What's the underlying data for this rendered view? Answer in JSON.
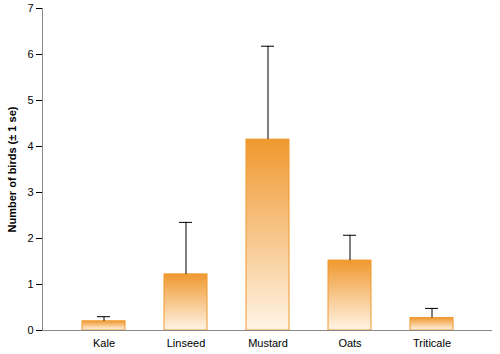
{
  "chart_data": {
    "type": "bar",
    "y_label": "Number of birds (± 1 se)",
    "categories": [
      "Kale",
      "Linseed",
      "Mustard",
      "Oats",
      "Triticale"
    ],
    "values": [
      0.2,
      1.22,
      4.15,
      1.52,
      0.27
    ],
    "error": [
      0.1,
      1.13,
      2.03,
      0.55,
      0.21
    ],
    "color": "#f0982e",
    "ylim": [
      0,
      7
    ],
    "yticks": [
      0,
      1,
      2,
      3,
      4,
      5,
      6,
      7
    ],
    "grid": false
  }
}
